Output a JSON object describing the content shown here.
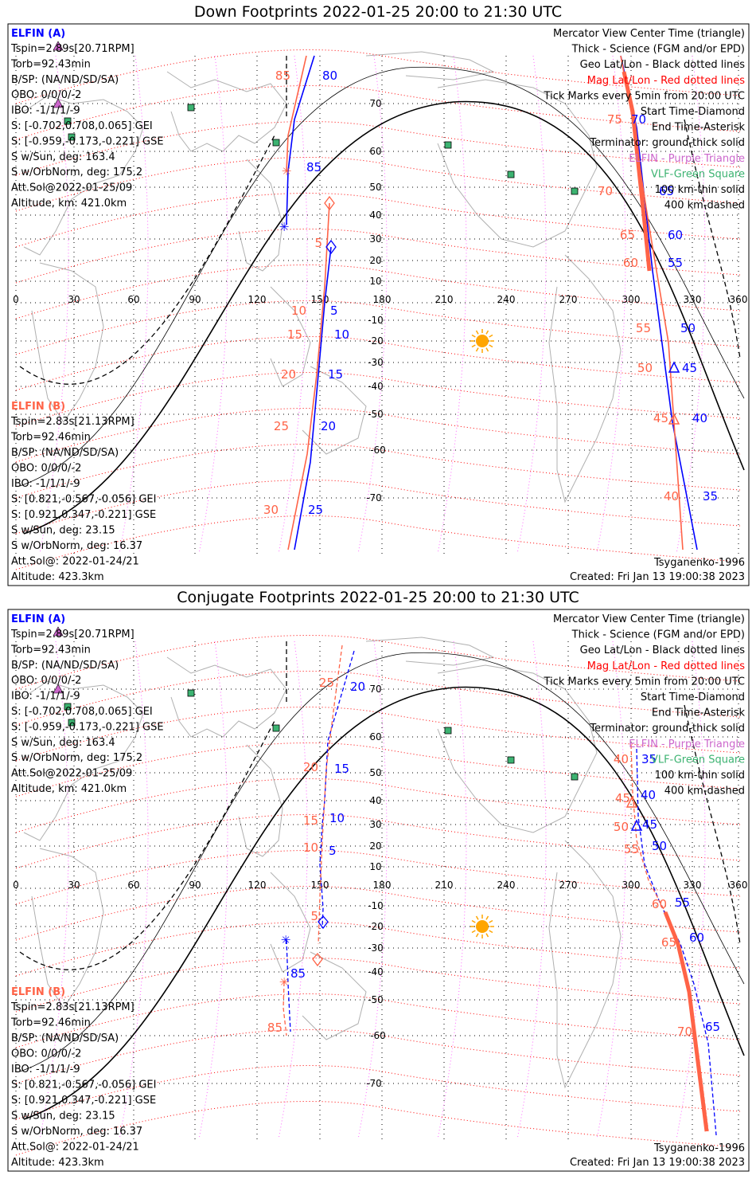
{
  "colors": {
    "elfin_a": "#0000ff",
    "elfin_b": "#ff6347",
    "mag_grid": "#ff0000",
    "geo_grid": "#000000",
    "purple_triangle": "#cc66cc",
    "green_square": "#3cb371",
    "sun": "#ffa500"
  },
  "panels": [
    {
      "id": "down",
      "title": "Down Footprints 2022-01-25 20:00 to 21:30 UTC",
      "left_a": {
        "header": "ELFIN (A)",
        "lines": [
          "Tspin=2.89s[20.71RPM]",
          "Torb=92.43min",
          "B/SP: (NA/ND/SD/SA)",
          "OBO: 0/0/0/-2",
          "IBO: -1/1/1/-9",
          "S: [-0.702,0.708,0.065] GEI",
          "S: [-0.959,-0.173,-0.221] GSE",
          "S w/Sun, deg: 163.4",
          "S w/OrbNorm, deg: 175.2",
          "Att.Sol@2022-01-25/09",
          "Altitude, km: 421.0km"
        ]
      },
      "left_b": {
        "header": "ELFIN (B)",
        "lines": [
          "Tspin=2.83s[21.13RPM]",
          "Torb=92.46min",
          "B/SP: (NA/ND/SD/SA)",
          "OBO: 0/0/0/-2",
          "IBO: -1/1/1/-9",
          "S: [0.821,-0.567,-0.056] GEI",
          "S: [0.921,0.347,-0.221] GSE",
          "S w/Sun, deg: 23.15",
          "S w/OrbNorm, deg: 16.37",
          "Att.Sol@: 2022-01-24/21",
          "Altitude: 423.3km"
        ]
      },
      "legend": [
        "Mercator View Center Time (triangle)",
        "Thick - Science (FGM and/or EPD)",
        "Geo Lat/Lon - Black dotted lines",
        "Mag Lat/Lon - Red dotted lines",
        "Tick Marks every 5min from 20:00 UTC",
        "Start Time-Diamond",
        "End Time-Asterisk",
        "Terminator: ground-thick solid",
        "ELFIN - Purple Triangle",
        "VLF-Green Square",
        "100 km-thin solid",
        "400 km-dashed"
      ],
      "model": "Tsyganenko-1996",
      "created": "Created: Fri Jan 13 19:00:38 2023",
      "lon_ticks": [
        "0",
        "30",
        "60",
        "90",
        "120",
        "150",
        "180",
        "210",
        "240",
        "270",
        "300",
        "330",
        "360"
      ],
      "lat_ticks": [
        "70",
        "60",
        "50",
        "40",
        "30",
        "20",
        "10",
        "-10",
        "-20",
        "-30",
        "-40",
        "-50",
        "-60",
        "-70"
      ],
      "orbit_labels_a": [
        "80",
        "85",
        "5",
        "10",
        "15",
        "20",
        "25",
        "70",
        "65",
        "60",
        "55",
        "50",
        "45",
        "40",
        "35"
      ],
      "orbit_labels_b": [
        "85",
        "5",
        "10",
        "15",
        "20",
        "25",
        "30",
        "75",
        "70",
        "65",
        "60",
        "55",
        "50",
        "45",
        "40"
      ]
    },
    {
      "id": "conjugate",
      "title": "Conjugate Footprints 2022-01-25 20:00 to 21:30 UTC",
      "left_a": {
        "header": "ELFIN (A)",
        "lines": [
          "Tspin=2.89s[20.71RPM]",
          "Torb=92.43min",
          "B/SP: (NA/ND/SD/SA)",
          "OBO: 0/0/0/-2",
          "IBO: -1/1/1/-9",
          "S: [-0.702,0.708,0.065] GEI",
          "S: [-0.959,-0.173,-0.221] GSE",
          "S w/Sun, deg: 163.4",
          "S w/OrbNorm, deg: 175.2",
          "Att.Sol@2022-01-25/09",
          "Altitude, km: 421.0km"
        ]
      },
      "left_b": {
        "header": "ELFIN (B)",
        "lines": [
          "Tspin=2.83s[21.13RPM]",
          "Torb=92.46min",
          "B/SP: (NA/ND/SD/SA)",
          "OBO: 0/0/0/-2",
          "IBO: -1/1/1/-9",
          "S: [0.821,-0.567,-0.056] GEI",
          "S: [0.921,0.347,-0.221] GSE",
          "S w/Sun, deg: 23.15",
          "S w/OrbNorm, deg: 16.37",
          "Att.Sol@: 2022-01-24/21",
          "Altitude: 423.3km"
        ]
      },
      "legend": [
        "Mercator View Center Time (triangle)",
        "Thick - Science (FGM and/or EPD)",
        "Geo Lat/Lon - Black dotted lines",
        "Mag Lat/Lon - Red dotted lines",
        "Tick Marks every 5min from 20:00 UTC",
        "Start Time-Diamond",
        "End Time-Asterisk",
        "Terminator: ground-thick solid",
        "ELFIN - Purple Triangle",
        "VLF-Green Square",
        "100 km-thin solid",
        "400 km-dashed"
      ],
      "model": "Tsyganenko-1996",
      "created": "Created: Fri Jan 13 19:00:38 2023",
      "lon_ticks": [
        "0",
        "30",
        "60",
        "90",
        "120",
        "150",
        "180",
        "210",
        "240",
        "270",
        "300",
        "330",
        "360"
      ],
      "lat_ticks": [
        "70",
        "60",
        "50",
        "40",
        "30",
        "20",
        "10",
        "-10",
        "-20",
        "-30",
        "-40",
        "-50",
        "-60",
        "-70"
      ],
      "orbit_labels_a": [
        "20",
        "15",
        "10",
        "5",
        "85",
        "35",
        "40",
        "45",
        "50",
        "55",
        "60",
        "65"
      ],
      "orbit_labels_b": [
        "25",
        "20",
        "15",
        "10",
        "5",
        "85",
        "40",
        "45",
        "50",
        "55",
        "60",
        "65",
        "70"
      ]
    }
  ]
}
